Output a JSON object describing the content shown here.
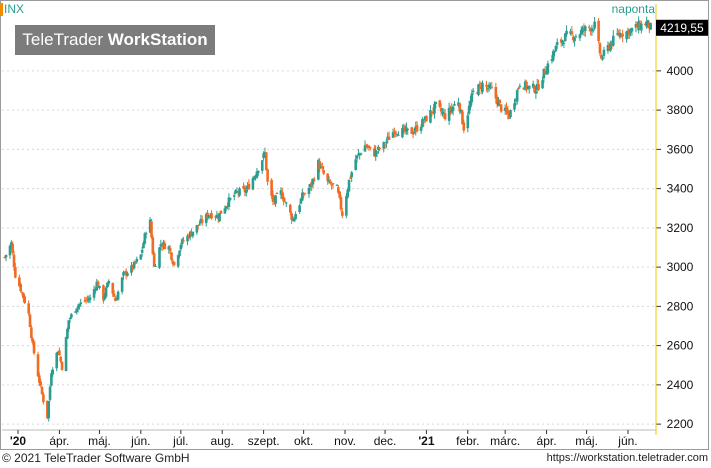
{
  "header": {
    "symbol": "INX",
    "period": "naponta"
  },
  "brand": {
    "name": "TeleTrader",
    "product": "WorkStation"
  },
  "footer": {
    "copyright": "© 2021 TeleTrader Software GmbH",
    "url": "https://workstation.teletrader.com"
  },
  "colors": {
    "up": "#2a9d8f",
    "down": "#f26b21",
    "grid": "#d6d6d6",
    "axis": "#f0c800",
    "last_bg": "#000000"
  },
  "chart_data": {
    "type": "candlestick",
    "symbol": "INX",
    "last_value": "4219,55",
    "ylim": [
      2170,
      4300
    ],
    "y_ticks": [
      {
        "value": 4000,
        "label": "4000"
      },
      {
        "value": 3800,
        "label": "3800"
      },
      {
        "value": 3600,
        "label": "3600"
      },
      {
        "value": 3400,
        "label": "3400"
      },
      {
        "value": 3200,
        "label": "3200"
      },
      {
        "value": 3000,
        "label": "3000"
      },
      {
        "value": 2800,
        "label": "2800"
      },
      {
        "value": 2600,
        "label": "2600"
      },
      {
        "value": 2400,
        "label": "2400"
      },
      {
        "value": 2200,
        "label": "2200"
      }
    ],
    "x_ticks": [
      {
        "date": "2020-03-01",
        "label": "'20",
        "bold": true
      },
      {
        "date": "2020-04-01",
        "label": "ápr."
      },
      {
        "date": "2020-05-01",
        "label": "máj."
      },
      {
        "date": "2020-06-01",
        "label": "jún."
      },
      {
        "date": "2020-07-01",
        "label": "júl."
      },
      {
        "date": "2020-08-01",
        "label": "aug."
      },
      {
        "date": "2020-09-01",
        "label": "szept."
      },
      {
        "date": "2020-10-01",
        "label": "okt."
      },
      {
        "date": "2020-11-01",
        "label": "nov."
      },
      {
        "date": "2020-12-01",
        "label": "dec."
      },
      {
        "date": "2021-01-01",
        "label": "'21",
        "bold": true
      },
      {
        "date": "2021-02-01",
        "label": "febr."
      },
      {
        "date": "2021-03-01",
        "label": "márc."
      },
      {
        "date": "2021-04-01",
        "label": "ápr."
      },
      {
        "date": "2021-05-01",
        "label": "máj."
      },
      {
        "date": "2021-06-01",
        "label": "jún."
      }
    ],
    "xlim": [
      "2020-02-18",
      "2021-06-22"
    ],
    "closes": [
      [
        "2020-02-20",
        3050
      ],
      [
        "2020-02-25",
        3120
      ],
      [
        "2020-02-28",
        2960
      ],
      [
        "2020-03-04",
        2870
      ],
      [
        "2020-03-09",
        2760
      ],
      [
        "2020-03-12",
        2600
      ],
      [
        "2020-03-16",
        2450
      ],
      [
        "2020-03-20",
        2320
      ],
      [
        "2020-03-23",
        2237
      ],
      [
        "2020-03-26",
        2470
      ],
      [
        "2020-03-31",
        2580
      ],
      [
        "2020-04-03",
        2490
      ],
      [
        "2020-04-08",
        2730
      ],
      [
        "2020-04-14",
        2800
      ],
      [
        "2020-04-20",
        2830
      ],
      [
        "2020-04-24",
        2840
      ],
      [
        "2020-04-29",
        2920
      ],
      [
        "2020-05-04",
        2840
      ],
      [
        "2020-05-08",
        2930
      ],
      [
        "2020-05-13",
        2830
      ],
      [
        "2020-05-19",
        2960
      ],
      [
        "2020-05-26",
        3000
      ],
      [
        "2020-06-01",
        3060
      ],
      [
        "2020-06-05",
        3190
      ],
      [
        "2020-06-08",
        3230
      ],
      [
        "2020-06-11",
        3000
      ],
      [
        "2020-06-16",
        3120
      ],
      [
        "2020-06-22",
        3100
      ],
      [
        "2020-06-26",
        3010
      ],
      [
        "2020-07-01",
        3120
      ],
      [
        "2020-07-08",
        3170
      ],
      [
        "2020-07-15",
        3220
      ],
      [
        "2020-07-22",
        3270
      ],
      [
        "2020-07-29",
        3260
      ],
      [
        "2020-08-05",
        3330
      ],
      [
        "2020-08-12",
        3380
      ],
      [
        "2020-08-19",
        3390
      ],
      [
        "2020-08-26",
        3480
      ],
      [
        "2020-09-02",
        3580
      ],
      [
        "2020-09-04",
        3430
      ],
      [
        "2020-09-08",
        3330
      ],
      [
        "2020-09-14",
        3380
      ],
      [
        "2020-09-18",
        3320
      ],
      [
        "2020-09-23",
        3240
      ],
      [
        "2020-09-30",
        3360
      ],
      [
        "2020-10-07",
        3420
      ],
      [
        "2020-10-12",
        3530
      ],
      [
        "2020-10-19",
        3430
      ],
      [
        "2020-10-26",
        3400
      ],
      [
        "2020-10-30",
        3270
      ],
      [
        "2020-11-04",
        3440
      ],
      [
        "2020-11-09",
        3550
      ],
      [
        "2020-11-16",
        3620
      ],
      [
        "2020-11-23",
        3580
      ],
      [
        "2020-11-30",
        3620
      ],
      [
        "2020-12-08",
        3700
      ],
      [
        "2020-12-15",
        3690
      ],
      [
        "2020-12-22",
        3690
      ],
      [
        "2020-12-31",
        3750
      ],
      [
        "2021-01-08",
        3820
      ],
      [
        "2021-01-15",
        3770
      ],
      [
        "2021-01-25",
        3850
      ],
      [
        "2021-01-29",
        3710
      ],
      [
        "2021-02-05",
        3890
      ],
      [
        "2021-02-12",
        3930
      ],
      [
        "2021-02-19",
        3900
      ],
      [
        "2021-02-26",
        3810
      ],
      [
        "2021-03-04",
        3770
      ],
      [
        "2021-03-12",
        3940
      ],
      [
        "2021-03-18",
        3915
      ],
      [
        "2021-03-25",
        3910
      ],
      [
        "2021-04-01",
        4020
      ],
      [
        "2021-04-09",
        4130
      ],
      [
        "2021-04-16",
        4180
      ],
      [
        "2021-04-23",
        4180
      ],
      [
        "2021-04-29",
        4210
      ],
      [
        "2021-05-07",
        4230
      ],
      [
        "2021-05-12",
        4060
      ],
      [
        "2021-05-18",
        4130
      ],
      [
        "2021-05-25",
        4190
      ],
      [
        "2021-06-01",
        4200
      ],
      [
        "2021-06-08",
        4225
      ],
      [
        "2021-06-15",
        4246
      ],
      [
        "2021-06-18",
        4219.55
      ]
    ]
  }
}
